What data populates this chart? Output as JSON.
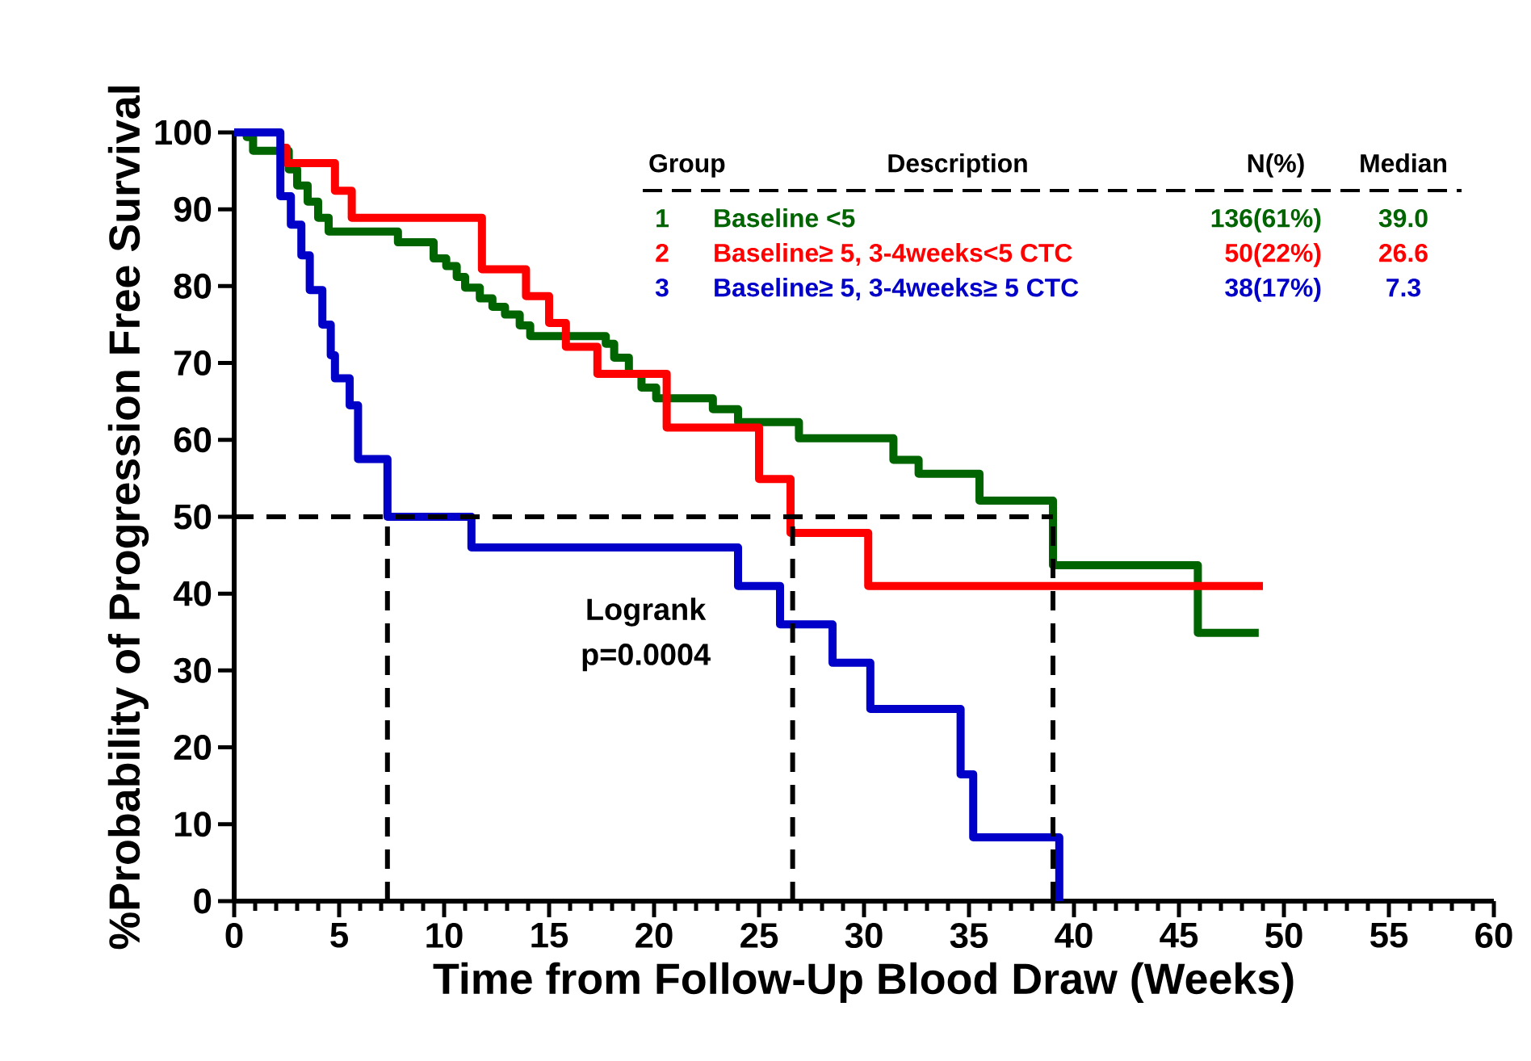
{
  "chart_data": {
    "type": "step",
    "xlabel": "Time from Follow-Up Blood Draw (Weeks)",
    "ylabel": "%Probability of Progression Free Survival",
    "xlim": [
      0,
      60
    ],
    "ylim": [
      0,
      100
    ],
    "xticks": [
      0,
      5,
      10,
      15,
      20,
      25,
      30,
      35,
      40,
      45,
      50,
      55,
      60
    ],
    "yticks": [
      0,
      10,
      20,
      30,
      40,
      50,
      60,
      70,
      80,
      90,
      100
    ],
    "line_style": "solid",
    "marker": "none",
    "grid": false,
    "legend": false,
    "series": [
      {
        "name": "Baseline <5",
        "color": "#006400",
        "x": [
          0,
          0.6,
          0.9,
          2.6,
          3.0,
          3.5,
          4.0,
          4.5,
          7.8,
          9.5,
          10.1,
          10.6,
          11.0,
          11.7,
          12.3,
          12.9,
          13.6,
          14.1,
          17.7,
          18.1,
          18.8,
          19.4,
          20.1,
          22.8,
          24.0,
          26.9,
          31.4,
          32.6,
          35.5,
          39.0,
          45.9,
          48.8
        ],
        "values": [
          100,
          99.4,
          97.6,
          95.2,
          93.1,
          91.0,
          88.9,
          87.1,
          85.7,
          83.6,
          82.6,
          81.2,
          79.8,
          78.4,
          77.3,
          76.3,
          74.9,
          73.5,
          72.5,
          70.7,
          68.6,
          66.8,
          65.4,
          64.0,
          62.3,
          60.2,
          57.4,
          55.6,
          52.1,
          43.7,
          34.9,
          34.9
        ]
      },
      {
        "name": "Baseline≥ 5, 3-4weeks<5 CTC",
        "color": "#ff0000",
        "x": [
          2.2,
          2.5,
          4.8,
          5.6,
          11.8,
          13.9,
          15.0,
          15.8,
          17.3,
          20.6,
          25.0,
          26.5,
          30.2,
          49.0
        ],
        "values": [
          98,
          96,
          92.4,
          88.9,
          82.2,
          78.7,
          75.2,
          72.1,
          68.6,
          61.6,
          54.9,
          47.9,
          41.0,
          41.0
        ]
      },
      {
        "name": "Baseline≥ 5, 3-4weeks≥ 5 CTC",
        "color": "#0000c8",
        "x": [
          0,
          2.2,
          2.7,
          3.2,
          3.6,
          4.2,
          4.6,
          4.8,
          5.5,
          5.9,
          7.3,
          11.3,
          24.0,
          26.0,
          28.5,
          30.3,
          34.6,
          35.2,
          39.3
        ],
        "values": [
          100,
          91.7,
          88,
          84,
          79.5,
          75,
          71,
          68,
          64.5,
          57.5,
          50,
          46,
          41,
          36,
          31,
          25,
          16.5,
          8.3,
          0
        ]
      }
    ],
    "ref_lines": [
      {
        "axis": "y",
        "value": 50,
        "color": "#000000",
        "line_style": "dashed"
      },
      {
        "axis": "x",
        "value": 7.3,
        "color": "#000000",
        "line_style": "dashed"
      },
      {
        "axis": "x",
        "value": 26.6,
        "color": "#000000",
        "line_style": "dashed"
      },
      {
        "axis": "x",
        "value": 39.0,
        "color": "#000000",
        "line_style": "dashed"
      }
    ],
    "annotations": [
      "Group",
      "Description",
      "N(%)",
      "Median",
      "1",
      "136(61%)",
      "39.0",
      "2",
      "50(22%)",
      "26.6",
      "3",
      "38(17%)",
      "7.3",
      "Logrank",
      "p=0.0004"
    ]
  }
}
